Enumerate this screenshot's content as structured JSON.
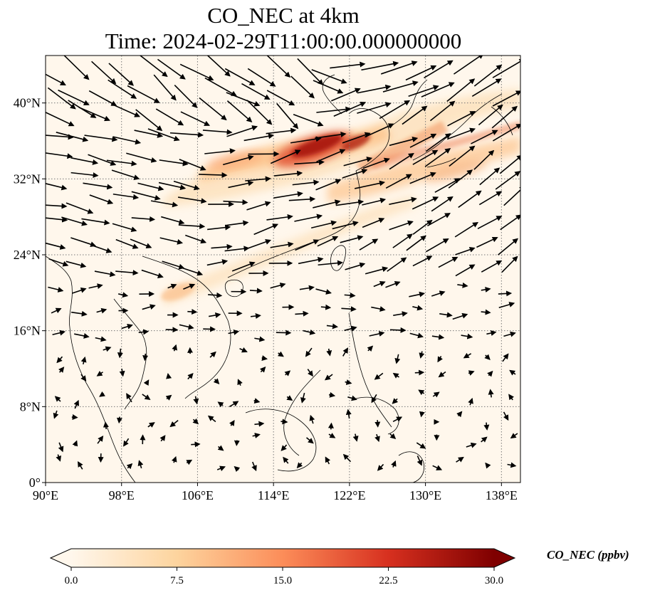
{
  "title_line1": "CO_NEC at 4km",
  "title_line2": "Time: 2024-02-29T11:00:00.000000000",
  "map": {
    "lon_range": [
      90,
      140
    ],
    "lat_range": [
      0,
      45
    ],
    "xticks": [
      90,
      98,
      106,
      114,
      122,
      130,
      138
    ],
    "yticks": [
      0,
      8,
      16,
      24,
      32,
      40
    ],
    "xtick_labels": [
      "90°E",
      "98°E",
      "106°E",
      "114°E",
      "122°E",
      "130°E",
      "138°E"
    ],
    "ytick_labels": [
      "0°",
      "8°N",
      "16°N",
      "24°N",
      "32°N",
      "40°N"
    ],
    "gridlines": true,
    "vector_field": "wind arrows"
  },
  "colorbar": {
    "title": "CO_NEC (ppbv)",
    "min": 0.0,
    "max": 30.0,
    "tick_labels": [
      "0.0",
      "7.5",
      "15.0",
      "22.5",
      "30.0"
    ],
    "colormap": "OrRd",
    "colors": [
      "#fff7ec",
      "#fdd49e",
      "#fc8d59",
      "#d7301f",
      "#7f0000"
    ],
    "extend": "both"
  }
}
